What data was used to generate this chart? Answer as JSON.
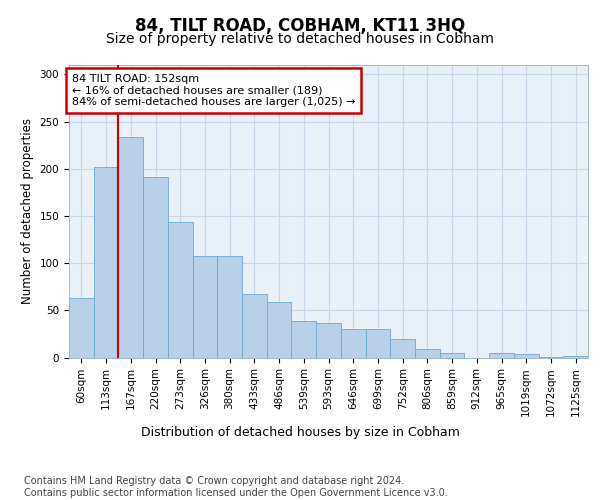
{
  "title": "84, TILT ROAD, COBHAM, KT11 3HQ",
  "subtitle": "Size of property relative to detached houses in Cobham",
  "xlabel": "Distribution of detached houses by size in Cobham",
  "ylabel": "Number of detached properties",
  "categories": [
    "60sqm",
    "113sqm",
    "167sqm",
    "220sqm",
    "273sqm",
    "326sqm",
    "380sqm",
    "433sqm",
    "486sqm",
    "539sqm",
    "593sqm",
    "646sqm",
    "699sqm",
    "752sqm",
    "806sqm",
    "859sqm",
    "912sqm",
    "965sqm",
    "1019sqm",
    "1072sqm",
    "1125sqm"
  ],
  "values": [
    63,
    202,
    234,
    191,
    144,
    108,
    108,
    67,
    59,
    39,
    37,
    30,
    30,
    20,
    9,
    5,
    0,
    5,
    4,
    1,
    2
  ],
  "bar_color": "#b8d0e8",
  "bar_edge_color": "#6aaad4",
  "grid_color": "#c8d8ea",
  "background_color": "#e8f0f8",
  "annotation_box_text": "84 TILT ROAD: 152sqm\n← 16% of detached houses are smaller (189)\n84% of semi-detached houses are larger (1,025) →",
  "annotation_box_color": "#ffffff",
  "annotation_box_edge_color": "#cc0000",
  "vline_x": 1.5,
  "vline_color": "#cc0000",
  "ylim": [
    0,
    310
  ],
  "yticks": [
    0,
    50,
    100,
    150,
    200,
    250,
    300
  ],
  "footer_text": "Contains HM Land Registry data © Crown copyright and database right 2024.\nContains public sector information licensed under the Open Government Licence v3.0.",
  "title_fontsize": 12,
  "subtitle_fontsize": 10,
  "xlabel_fontsize": 9,
  "ylabel_fontsize": 8.5,
  "tick_fontsize": 7.5,
  "footer_fontsize": 7
}
